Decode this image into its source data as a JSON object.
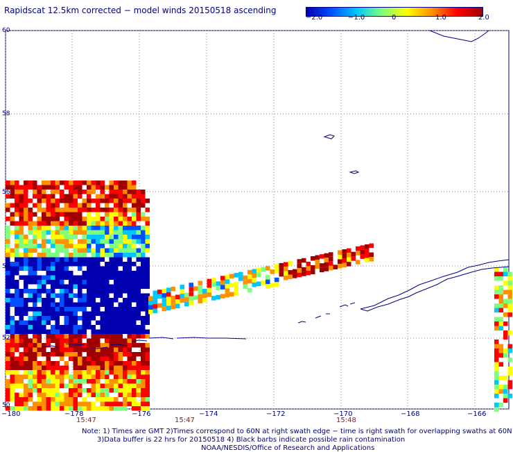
{
  "title": "Rapidscat 12.5km corrected − model winds 20150518 ascending",
  "colorbar": {
    "labels": [
      "−2.0",
      "−1.0",
      "0",
      "1.0",
      "2.0"
    ],
    "values": [
      -2.0,
      -1.0,
      0,
      1.0,
      2.0
    ],
    "colors": [
      "#0000b0",
      "#0050ff",
      "#00c8ff",
      "#7fff7f",
      "#ffff00",
      "#ff9000",
      "#ff0000",
      "#a00000"
    ]
  },
  "map": {
    "lat_labels": [
      "60",
      "58",
      "56",
      "54",
      "52",
      "50"
    ],
    "lon_labels": [
      "−180",
      "−178",
      "−176",
      "−174",
      "−172",
      "−170",
      "−168",
      "−166"
    ],
    "time_labels": [
      "15:47",
      "15:47",
      "15:48"
    ],
    "lat_range": [
      50,
      60
    ],
    "lon_range": [
      -180,
      -165
    ]
  },
  "notes": [
    "Note: 1) Times are GMT 2)Times correspond to 60N at right swath edge − time is right swath for overlapping swaths at 60N",
    "3)Data buffer is 22 hrs for 20150518 4) Black barbs indicate possible rain contamination",
    "NOAA/NESDIS/Office of Research and Applications"
  ]
}
